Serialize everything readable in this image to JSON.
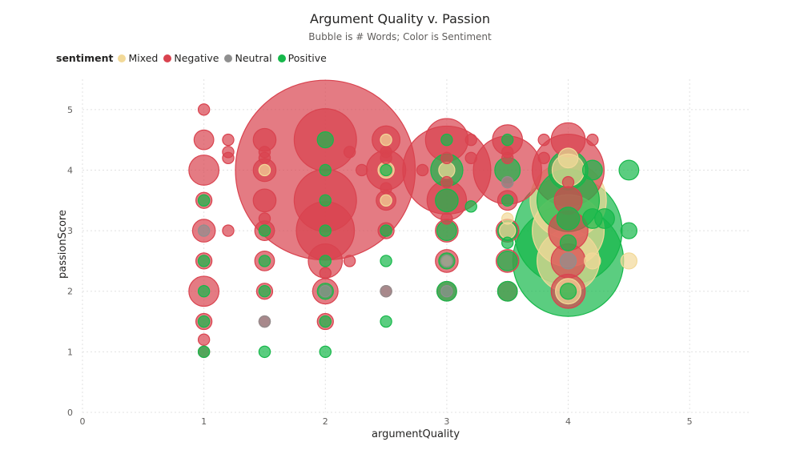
{
  "chart_data": {
    "type": "scatter",
    "title": "Argument Quality v. Passion",
    "subtitle": "Bubble is # Words; Color is Sentiment",
    "xlabel": "argumentQuality",
    "ylabel": "passionScore",
    "xlim": [
      0,
      5.5
    ],
    "ylim": [
      0,
      5.5
    ],
    "xticks": [
      0,
      1,
      2,
      3,
      4,
      5
    ],
    "yticks": [
      0,
      1,
      2,
      3,
      4,
      5
    ],
    "grid": true,
    "legend": {
      "title": "sentiment",
      "placement": "top-left",
      "entries": [
        {
          "name": "Mixed",
          "color": "#f2d998"
        },
        {
          "name": "Negative",
          "color": "#d9434f"
        },
        {
          "name": "Neutral",
          "color": "#8f8f8f"
        },
        {
          "name": "Positive",
          "color": "#16b84a"
        }
      ]
    },
    "series": [
      {
        "name": "Negative",
        "color": "#d9434f",
        "points": [
          {
            "x": 1,
            "y": 5,
            "size": 1
          },
          {
            "x": 1,
            "y": 4.5,
            "size": 3
          },
          {
            "x": 1,
            "y": 4,
            "size": 7
          },
          {
            "x": 1,
            "y": 3.5,
            "size": 2
          },
          {
            "x": 1,
            "y": 3,
            "size": 4
          },
          {
            "x": 1,
            "y": 2.5,
            "size": 2
          },
          {
            "x": 1,
            "y": 2,
            "size": 7
          },
          {
            "x": 1,
            "y": 1.5,
            "size": 2
          },
          {
            "x": 1,
            "y": 1.2,
            "size": 1
          },
          {
            "x": 1,
            "y": 1,
            "size": 1
          },
          {
            "x": 1.2,
            "y": 4.5,
            "size": 1
          },
          {
            "x": 1.2,
            "y": 4.3,
            "size": 1
          },
          {
            "x": 1.2,
            "y": 4.2,
            "size": 1
          },
          {
            "x": 1.2,
            "y": 3,
            "size": 1
          },
          {
            "x": 1.5,
            "y": 4.5,
            "size": 4
          },
          {
            "x": 1.5,
            "y": 4.3,
            "size": 1
          },
          {
            "x": 1.5,
            "y": 4.2,
            "size": 1
          },
          {
            "x": 1.5,
            "y": 4,
            "size": 4
          },
          {
            "x": 1.5,
            "y": 3.5,
            "size": 4
          },
          {
            "x": 1.5,
            "y": 3.2,
            "size": 1
          },
          {
            "x": 1.5,
            "y": 3,
            "size": 3
          },
          {
            "x": 1.5,
            "y": 2.5,
            "size": 3
          },
          {
            "x": 1.5,
            "y": 2,
            "size": 2
          },
          {
            "x": 1.5,
            "y": 1.5,
            "size": 1
          },
          {
            "x": 2,
            "y": 4.5,
            "size": 30
          },
          {
            "x": 2,
            "y": 4,
            "size": 250
          },
          {
            "x": 2,
            "y": 3.5,
            "size": 30
          },
          {
            "x": 2,
            "y": 3,
            "size": 26
          },
          {
            "x": 2,
            "y": 2.5,
            "size": 9
          },
          {
            "x": 2,
            "y": 2.3,
            "size": 1
          },
          {
            "x": 2,
            "y": 2,
            "size": 5
          },
          {
            "x": 2,
            "y": 1.5,
            "size": 2
          },
          {
            "x": 2.2,
            "y": 4.3,
            "size": 1
          },
          {
            "x": 2.2,
            "y": 2.5,
            "size": 1
          },
          {
            "x": 2.3,
            "y": 4,
            "size": 1
          },
          {
            "x": 2.5,
            "y": 4.5,
            "size": 6
          },
          {
            "x": 2.5,
            "y": 4.3,
            "size": 1
          },
          {
            "x": 2.5,
            "y": 4.2,
            "size": 1
          },
          {
            "x": 2.5,
            "y": 4,
            "size": 12
          },
          {
            "x": 2.5,
            "y": 3.7,
            "size": 1
          },
          {
            "x": 2.5,
            "y": 3.5,
            "size": 3
          },
          {
            "x": 2.5,
            "y": 3,
            "size": 2
          },
          {
            "x": 2.5,
            "y": 2,
            "size": 1
          },
          {
            "x": 2.8,
            "y": 4,
            "size": 1
          },
          {
            "x": 3,
            "y": 4.5,
            "size": 14
          },
          {
            "x": 3,
            "y": 4.2,
            "size": 1
          },
          {
            "x": 3,
            "y": 4,
            "size": 60
          },
          {
            "x": 3,
            "y": 3.8,
            "size": 1
          },
          {
            "x": 3,
            "y": 3.5,
            "size": 12
          },
          {
            "x": 3,
            "y": 3.2,
            "size": 1
          },
          {
            "x": 3,
            "y": 3,
            "size": 4
          },
          {
            "x": 3,
            "y": 2.5,
            "size": 4
          },
          {
            "x": 3,
            "y": 2,
            "size": 3
          },
          {
            "x": 3.2,
            "y": 4.5,
            "size": 1
          },
          {
            "x": 3.2,
            "y": 4.2,
            "size": 1
          },
          {
            "x": 3.5,
            "y": 4.5,
            "size": 7
          },
          {
            "x": 3.5,
            "y": 4.3,
            "size": 1
          },
          {
            "x": 3.5,
            "y": 4.2,
            "size": 1
          },
          {
            "x": 3.5,
            "y": 4,
            "size": 36
          },
          {
            "x": 3.5,
            "y": 3.8,
            "size": 1
          },
          {
            "x": 3.5,
            "y": 3.5,
            "size": 3
          },
          {
            "x": 3.5,
            "y": 3,
            "size": 4
          },
          {
            "x": 3.5,
            "y": 2.5,
            "size": 4
          },
          {
            "x": 3.5,
            "y": 2,
            "size": 3
          },
          {
            "x": 3.8,
            "y": 4.5,
            "size": 1
          },
          {
            "x": 3.8,
            "y": 4.2,
            "size": 1
          },
          {
            "x": 4,
            "y": 4.5,
            "size": 9
          },
          {
            "x": 4,
            "y": 4,
            "size": 40
          },
          {
            "x": 4,
            "y": 3.8,
            "size": 1
          },
          {
            "x": 4,
            "y": 3.5,
            "size": 6
          },
          {
            "x": 4,
            "y": 3,
            "size": 12
          },
          {
            "x": 4,
            "y": 2.5,
            "size": 9
          },
          {
            "x": 4,
            "y": 2,
            "size": 9
          },
          {
            "x": 4.2,
            "y": 4.5,
            "size": 1
          }
        ]
      },
      {
        "name": "Mixed",
        "color": "#f2d998",
        "points": [
          {
            "x": 1.5,
            "y": 4,
            "size": 1
          },
          {
            "x": 2.5,
            "y": 4.5,
            "size": 1
          },
          {
            "x": 2.5,
            "y": 4,
            "size": 2
          },
          {
            "x": 2.5,
            "y": 3.5,
            "size": 1
          },
          {
            "x": 3,
            "y": 4,
            "size": 2
          },
          {
            "x": 3,
            "y": 2.5,
            "size": 1
          },
          {
            "x": 3.5,
            "y": 3.2,
            "size": 1
          },
          {
            "x": 3.5,
            "y": 3,
            "size": 2
          },
          {
            "x": 4,
            "y": 4.2,
            "size": 3
          },
          {
            "x": 4,
            "y": 4,
            "size": 8
          },
          {
            "x": 4,
            "y": 3.5,
            "size": 45
          },
          {
            "x": 4,
            "y": 3,
            "size": 40
          },
          {
            "x": 4,
            "y": 2.5,
            "size": 30
          },
          {
            "x": 4,
            "y": 2,
            "size": 5
          },
          {
            "x": 4.2,
            "y": 2.5,
            "size": 2
          },
          {
            "x": 4.5,
            "y": 2.5,
            "size": 2
          }
        ]
      },
      {
        "name": "Neutral",
        "color": "#8f8f8f",
        "points": [
          {
            "x": 1,
            "y": 3,
            "size": 1
          },
          {
            "x": 1.5,
            "y": 1.5,
            "size": 1
          },
          {
            "x": 2,
            "y": 2,
            "size": 1
          },
          {
            "x": 2.5,
            "y": 2,
            "size": 1
          },
          {
            "x": 3,
            "y": 2.5,
            "size": 1
          },
          {
            "x": 3,
            "y": 2,
            "size": 1
          },
          {
            "x": 3.5,
            "y": 3.8,
            "size": 1
          },
          {
            "x": 4,
            "y": 2.5,
            "size": 2
          }
        ]
      },
      {
        "name": "Positive",
        "color": "#16b84a",
        "points": [
          {
            "x": 1,
            "y": 3.5,
            "size": 1
          },
          {
            "x": 1,
            "y": 2.5,
            "size": 1
          },
          {
            "x": 1,
            "y": 2,
            "size": 1
          },
          {
            "x": 1,
            "y": 1.5,
            "size": 1
          },
          {
            "x": 1,
            "y": 1,
            "size": 1
          },
          {
            "x": 1.5,
            "y": 3,
            "size": 1
          },
          {
            "x": 1.5,
            "y": 2.5,
            "size": 1
          },
          {
            "x": 1.5,
            "y": 2,
            "size": 1
          },
          {
            "x": 1.5,
            "y": 1,
            "size": 1
          },
          {
            "x": 2,
            "y": 4.5,
            "size": 2
          },
          {
            "x": 2,
            "y": 4,
            "size": 1
          },
          {
            "x": 2,
            "y": 3.5,
            "size": 1
          },
          {
            "x": 2,
            "y": 3,
            "size": 1
          },
          {
            "x": 2,
            "y": 2.5,
            "size": 1
          },
          {
            "x": 2,
            "y": 2,
            "size": 2
          },
          {
            "x": 2,
            "y": 1.5,
            "size": 1
          },
          {
            "x": 2,
            "y": 1,
            "size": 1
          },
          {
            "x": 2.5,
            "y": 4,
            "size": 1
          },
          {
            "x": 2.5,
            "y": 3,
            "size": 1
          },
          {
            "x": 2.5,
            "y": 2.5,
            "size": 1
          },
          {
            "x": 2.5,
            "y": 1.5,
            "size": 1
          },
          {
            "x": 3,
            "y": 4.5,
            "size": 1
          },
          {
            "x": 3,
            "y": 4,
            "size": 8
          },
          {
            "x": 3,
            "y": 3.5,
            "size": 4
          },
          {
            "x": 3,
            "y": 3,
            "size": 3
          },
          {
            "x": 3,
            "y": 2.5,
            "size": 2
          },
          {
            "x": 3,
            "y": 2,
            "size": 3
          },
          {
            "x": 3.2,
            "y": 3.4,
            "size": 1
          },
          {
            "x": 3.5,
            "y": 4.5,
            "size": 1
          },
          {
            "x": 3.5,
            "y": 4,
            "size": 5
          },
          {
            "x": 3.5,
            "y": 3.5,
            "size": 1
          },
          {
            "x": 3.5,
            "y": 3,
            "size": 3
          },
          {
            "x": 3.5,
            "y": 2.8,
            "size": 1
          },
          {
            "x": 3.5,
            "y": 2.5,
            "size": 3
          },
          {
            "x": 3.5,
            "y": 2,
            "size": 3
          },
          {
            "x": 4,
            "y": 4,
            "size": 12
          },
          {
            "x": 4,
            "y": 3.5,
            "size": 30
          },
          {
            "x": 4,
            "y": 3.2,
            "size": 4
          },
          {
            "x": 4,
            "y": 3,
            "size": 90
          },
          {
            "x": 4,
            "y": 2.8,
            "size": 2
          },
          {
            "x": 4,
            "y": 2.5,
            "size": 95
          },
          {
            "x": 4,
            "y": 2,
            "size": 2
          },
          {
            "x": 4.2,
            "y": 4,
            "size": 3
          },
          {
            "x": 4.2,
            "y": 3.2,
            "size": 3
          },
          {
            "x": 4.3,
            "y": 3.2,
            "size": 3
          },
          {
            "x": 4.5,
            "y": 4,
            "size": 3
          },
          {
            "x": 4.5,
            "y": 3,
            "size": 2
          }
        ]
      }
    ]
  }
}
